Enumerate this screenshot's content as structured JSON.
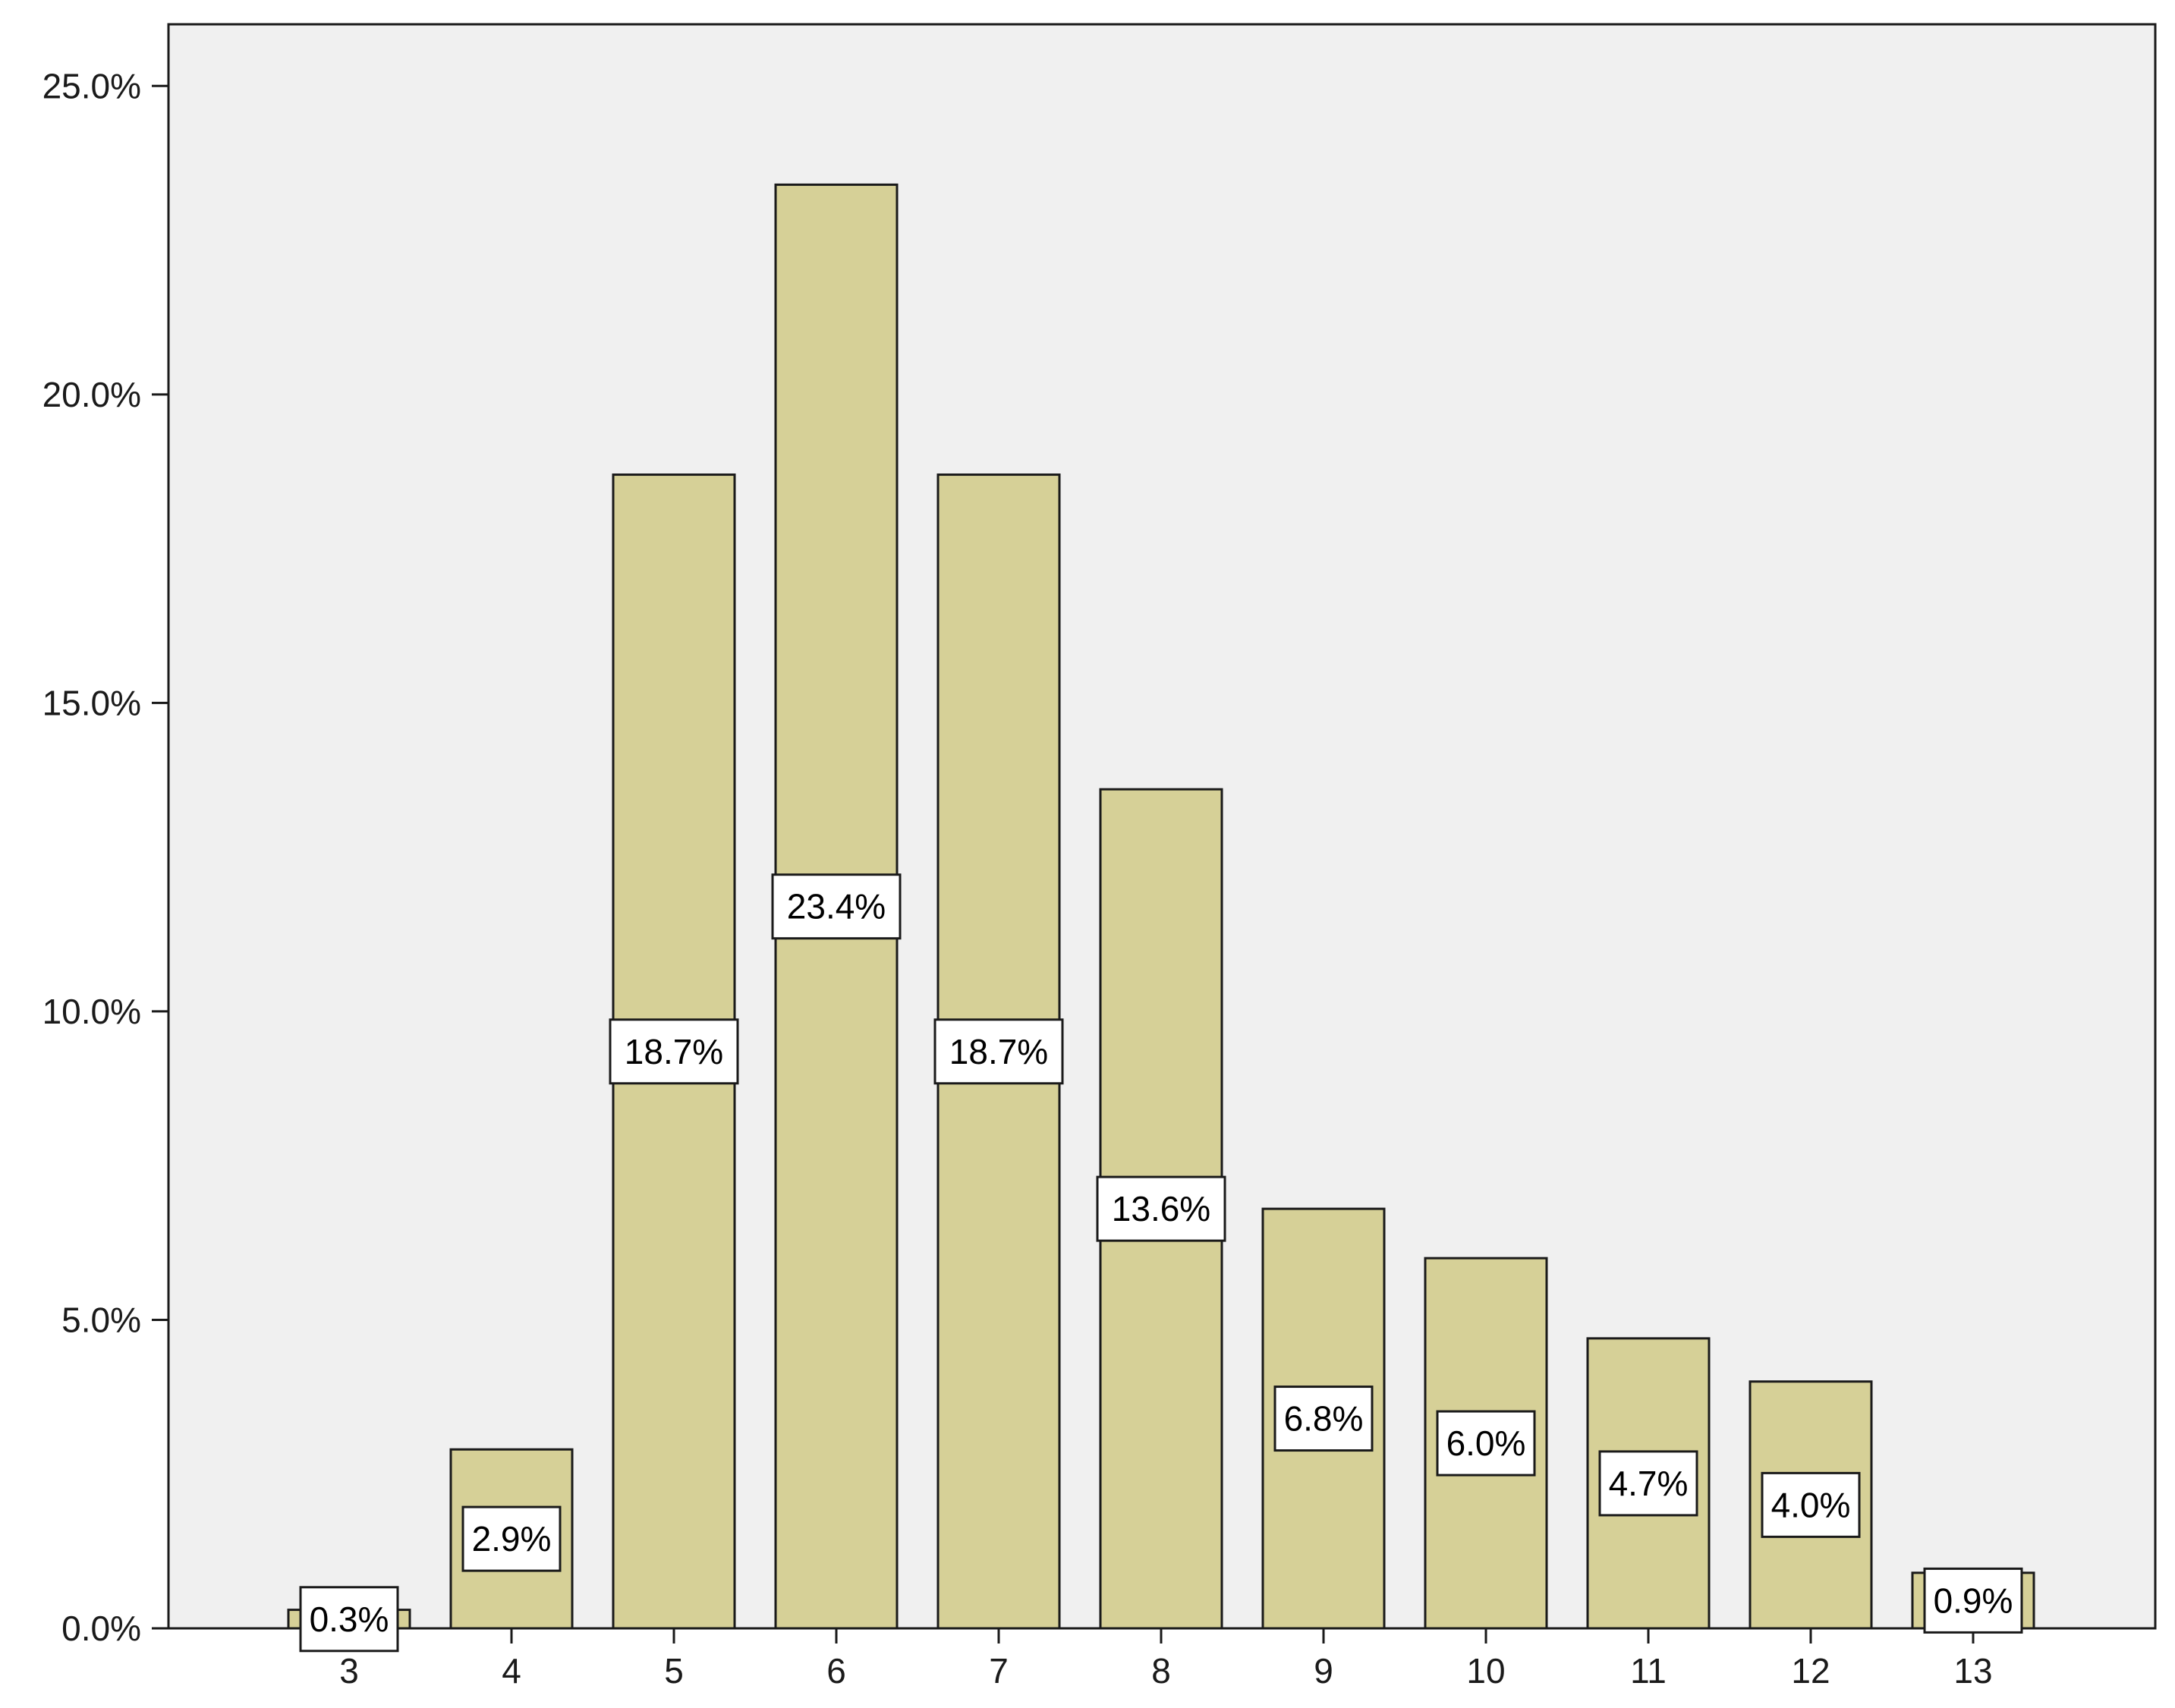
{
  "chart_data": {
    "type": "bar",
    "title": "",
    "xlabel": "",
    "ylabel": "",
    "categories": [
      "3",
      "4",
      "5",
      "6",
      "7",
      "8",
      "9",
      "10",
      "11",
      "12",
      "13"
    ],
    "values": [
      0.3,
      2.9,
      18.7,
      23.4,
      18.7,
      13.6,
      6.8,
      6.0,
      4.7,
      4.0,
      0.9
    ],
    "data_labels": [
      "0.3%",
      "2.9%",
      "18.7%",
      "23.4%",
      "18.7%",
      "13.6%",
      "6.8%",
      "6.0%",
      "4.7%",
      "4.0%",
      "0.9%"
    ],
    "ylim": [
      0,
      26
    ],
    "yticks": [
      0,
      5,
      10,
      15,
      20,
      25
    ],
    "ytick_labels": [
      "0.0%",
      "5.0%",
      "10.0%",
      "15.0%",
      "20.0%",
      "25.0%"
    ],
    "grid": false,
    "legend": "none",
    "colors": {
      "bar_fill": "#d6d097",
      "bar_stroke": "#1a1a1a",
      "plot_background": "#f0f0f0",
      "label_box_fill": "#ffffff",
      "axis": "#1a1a1a"
    }
  }
}
